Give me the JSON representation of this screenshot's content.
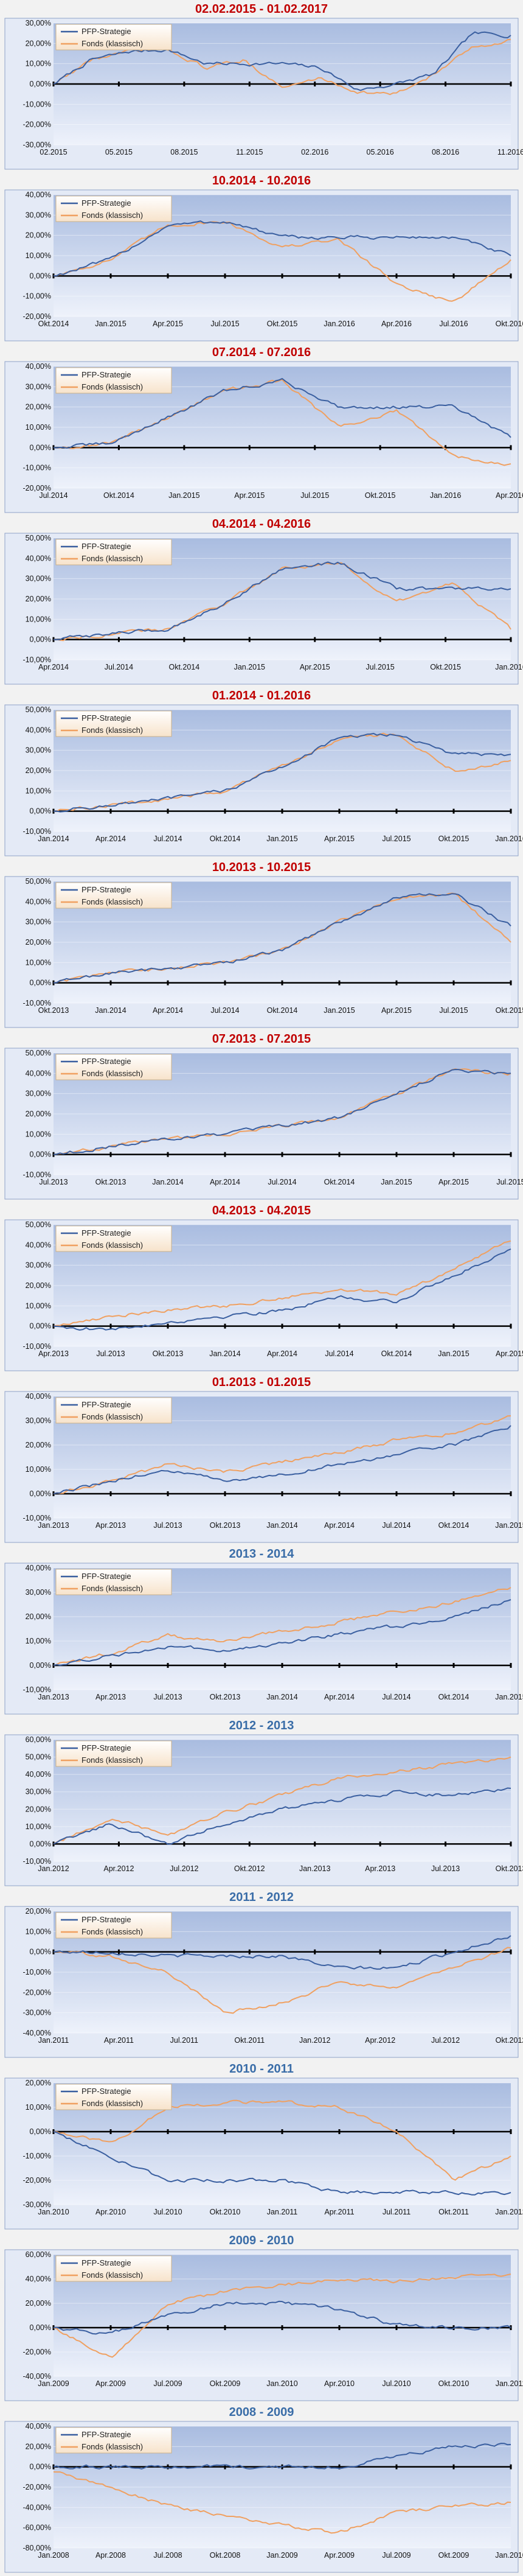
{
  "legend": {
    "strategy": "PFP-Strategie",
    "fund": "Fonds (klassisch)"
  },
  "colors": {
    "strategy": "#3a5fa0",
    "fund": "#f0a060",
    "title_red": "#c00000",
    "title_blue": "#3a6da8",
    "plot_top": "#a9bce0",
    "plot_bottom": "#eef2fb",
    "frame_border": "#8fa2c8",
    "baseline": "#000000"
  },
  "chart_data": [
    {
      "type": "line",
      "title": "02.02.2015 - 01.02.2017",
      "title_color": "red",
      "yticks": [
        "30,00%",
        "20,00%",
        "10,00%",
        "0,00%",
        "-10,00%",
        "-20,00%",
        "-30,00%"
      ],
      "ylim": [
        -30,
        30
      ],
      "xticks": [
        "02.2015",
        "05.2015",
        "08.2015",
        "11.2015",
        "02.2016",
        "05.2016",
        "08.2016",
        "11.2016"
      ],
      "x": [
        "02.2015",
        "04.2015",
        "06.2015",
        "08.2015",
        "10.2015",
        "12.2015",
        "02.2016",
        "04.2016",
        "06.2016",
        "08.2016",
        "10.2016",
        "12.2016",
        "02.2017"
      ],
      "series": [
        {
          "name": "PFP-Strategie",
          "values": [
            0,
            12,
            16,
            17,
            10,
            10,
            10,
            8,
            -3,
            0,
            5,
            25,
            24
          ]
        },
        {
          "name": "Fonds (klassisch)",
          "values": [
            0,
            12,
            16,
            17,
            8,
            12,
            -2,
            3,
            -4,
            -5,
            5,
            18,
            22
          ]
        }
      ]
    },
    {
      "type": "line",
      "title": "10.2014 - 10.2016",
      "title_color": "red",
      "yticks": [
        "40,00%",
        "30,00%",
        "20,00%",
        "10,00%",
        "0,00%",
        "-10,00%",
        "-20,00%"
      ],
      "ylim": [
        -20,
        40
      ],
      "xticks": [
        "Okt.2014",
        "Jan.2015",
        "Apr.2015",
        "Jul.2015",
        "Okt.2015",
        "Jan.2016",
        "Apr.2016",
        "Jul.2016",
        "Okt.2016"
      ],
      "x": [
        "Okt.2014",
        "Jan.2015",
        "Apr.2015",
        "Jul.2015",
        "Okt.2015",
        "Jan.2016",
        "Apr.2016",
        "Jul.2016",
        "Okt.2016"
      ],
      "series": [
        {
          "name": "PFP-Strategie",
          "values": [
            0,
            8,
            25,
            27,
            19,
            19,
            19,
            19,
            10
          ]
        },
        {
          "name": "Fonds (klassisch)",
          "values": [
            0,
            8,
            25,
            27,
            14,
            18,
            -4,
            -13,
            8
          ]
        }
      ]
    },
    {
      "type": "line",
      "title": "07.2014 - 07.2016",
      "title_color": "red",
      "yticks": [
        "40,00%",
        "30,00%",
        "20,00%",
        "10,00%",
        "0,00%",
        "-10,00%",
        "-20,00%"
      ],
      "ylim": [
        -20,
        40
      ],
      "xticks": [
        "Jul.2014",
        "Okt.2014",
        "Jan.2015",
        "Apr.2015",
        "Jul.2015",
        "Okt.2015",
        "Jan.2016",
        "Apr.2016"
      ],
      "x": [
        "Jul.2014",
        "Okt.2014",
        "Jan.2015",
        "Apr.2015",
        "Jul.2015",
        "Okt.2015",
        "Jan.2016",
        "Apr.2016",
        "Jul.2016"
      ],
      "series": [
        {
          "name": "PFP-Strategie",
          "values": [
            0,
            2,
            15,
            28,
            33,
            20,
            20,
            20,
            5
          ]
        },
        {
          "name": "Fonds (klassisch)",
          "values": [
            0,
            2,
            15,
            28,
            33,
            10,
            18,
            -4,
            -8
          ]
        }
      ]
    },
    {
      "type": "line",
      "title": "04.2014 - 04.2016",
      "title_color": "red",
      "yticks": [
        "50,00%",
        "40,00%",
        "30,00%",
        "20,00%",
        "10,00%",
        "0,00%",
        "-10,00%"
      ],
      "ylim": [
        -10,
        50
      ],
      "xticks": [
        "Apr.2014",
        "Jul.2014",
        "Okt.2014",
        "Jan.2015",
        "Apr.2015",
        "Jul.2015",
        "Okt.2015",
        "Jan.2016"
      ],
      "x": [
        "Apr.2014",
        "Jul.2014",
        "Okt.2014",
        "Jan.2015",
        "Apr.2015",
        "Jul.2015",
        "Okt.2015",
        "Jan.2016",
        "Apr.2016"
      ],
      "series": [
        {
          "name": "PFP-Strategie",
          "values": [
            0,
            3,
            5,
            18,
            35,
            38,
            25,
            25,
            25
          ]
        },
        {
          "name": "Fonds (klassisch)",
          "values": [
            0,
            3,
            5,
            18,
            35,
            38,
            18,
            28,
            5
          ]
        }
      ]
    },
    {
      "type": "line",
      "title": "01.2014 - 01.2016",
      "title_color": "red",
      "yticks": [
        "50,00%",
        "40,00%",
        "30,00%",
        "20,00%",
        "10,00%",
        "0,00%",
        "-10,00%"
      ],
      "ylim": [
        -10,
        50
      ],
      "xticks": [
        "Jan.2014",
        "Apr.2014",
        "Jul.2014",
        "Okt.2014",
        "Jan.2015",
        "Apr.2015",
        "Jul.2015",
        "Okt.2015",
        "Jan.2016"
      ],
      "x": [
        "Jan.2014",
        "Apr.2014",
        "Jul.2014",
        "Okt.2014",
        "Jan.2015",
        "Apr.2015",
        "Jul.2015",
        "Okt.2015",
        "Jan.2016"
      ],
      "series": [
        {
          "name": "PFP-Strategie",
          "values": [
            0,
            3,
            6,
            10,
            22,
            36,
            38,
            28,
            28
          ]
        },
        {
          "name": "Fonds (klassisch)",
          "values": [
            0,
            3,
            6,
            10,
            22,
            36,
            38,
            20,
            25
          ]
        }
      ]
    },
    {
      "type": "line",
      "title": "10.2013 - 10.2015",
      "title_color": "red",
      "yticks": [
        "50,00%",
        "40,00%",
        "30,00%",
        "20,00%",
        "10,00%",
        "0,00%",
        "-10,00%"
      ],
      "ylim": [
        -10,
        50
      ],
      "xticks": [
        "Okt.2013",
        "Jan.2014",
        "Apr.2014",
        "Jul.2014",
        "Okt.2014",
        "Jan.2015",
        "Apr.2015",
        "Jul.2015",
        "Okt.2015"
      ],
      "x": [
        "Okt.2013",
        "Jan.2014",
        "Apr.2014",
        "Jul.2014",
        "Okt.2014",
        "Jan.2015",
        "Apr.2015",
        "Jul.2015",
        "Okt.2015"
      ],
      "series": [
        {
          "name": "PFP-Strategie",
          "values": [
            0,
            5,
            7,
            10,
            16,
            30,
            42,
            44,
            28
          ]
        },
        {
          "name": "Fonds (klassisch)",
          "values": [
            0,
            5,
            7,
            10,
            16,
            30,
            42,
            44,
            20
          ]
        }
      ]
    },
    {
      "type": "line",
      "title": "07.2013 - 07.2015",
      "title_color": "red",
      "yticks": [
        "50,00%",
        "40,00%",
        "30,00%",
        "20,00%",
        "10,00%",
        "0,00%",
        "-10,00%"
      ],
      "ylim": [
        -10,
        50
      ],
      "xticks": [
        "Jul.2013",
        "Okt.2013",
        "Jan.2014",
        "Apr.2014",
        "Jul.2014",
        "Okt.2014",
        "Jan.2015",
        "Apr.2015",
        "Jul.2015"
      ],
      "x": [
        "Jul.2013",
        "Okt.2013",
        "Jan.2014",
        "Apr.2014",
        "Jul.2014",
        "Okt.2014",
        "Jan.2015",
        "Apr.2015",
        "Jul.2015"
      ],
      "series": [
        {
          "name": "PFP-Strategie",
          "values": [
            0,
            4,
            8,
            10,
            14,
            18,
            30,
            42,
            40
          ]
        },
        {
          "name": "Fonds (klassisch)",
          "values": [
            0,
            4,
            8,
            10,
            14,
            18,
            30,
            42,
            40
          ]
        }
      ]
    },
    {
      "type": "line",
      "title": "04.2013 - 04.2015",
      "title_color": "red",
      "yticks": [
        "50,00%",
        "40,00%",
        "30,00%",
        "20,00%",
        "10,00%",
        "0,00%",
        "-10,00%"
      ],
      "ylim": [
        -10,
        50
      ],
      "xticks": [
        "Apr.2013",
        "Jul.2013",
        "Okt.2013",
        "Jan.2014",
        "Apr.2014",
        "Jul.2014",
        "Okt.2014",
        "Jan.2015",
        "Apr.2015"
      ],
      "x": [
        "Apr.2013",
        "Jul.2013",
        "Okt.2013",
        "Jan.2014",
        "Apr.2014",
        "Jul.2014",
        "Okt.2014",
        "Jan.2015",
        "Apr.2015"
      ],
      "series": [
        {
          "name": "PFP-Strategie",
          "values": [
            0,
            -2,
            2,
            5,
            8,
            14,
            12,
            25,
            38
          ]
        },
        {
          "name": "Fonds (klassisch)",
          "values": [
            0,
            5,
            8,
            10,
            14,
            18,
            16,
            28,
            42
          ]
        }
      ]
    },
    {
      "type": "line",
      "title": "01.2013 - 01.2015",
      "title_color": "red",
      "yticks": [
        "40,00%",
        "30,00%",
        "20,00%",
        "10,00%",
        "0,00%",
        "-10,00%"
      ],
      "ylim": [
        -10,
        40
      ],
      "xticks": [
        "Jan.2013",
        "Apr.2013",
        "Jul.2013",
        "Okt.2013",
        "Jan.2014",
        "Apr.2014",
        "Jul.2014",
        "Okt.2014",
        "Jan.2015"
      ],
      "x": [
        "Jan.2013",
        "Apr.2013",
        "Jul.2013",
        "Okt.2013",
        "Jan.2014",
        "Apr.2014",
        "Jul.2014",
        "Okt.2014",
        "Jan.2015"
      ],
      "series": [
        {
          "name": "PFP-Strategie",
          "values": [
            0,
            5,
            10,
            5,
            8,
            12,
            16,
            20,
            28
          ]
        },
        {
          "name": "Fonds (klassisch)",
          "values": [
            0,
            5,
            12,
            9,
            13,
            17,
            22,
            25,
            32
          ]
        }
      ]
    },
    {
      "type": "line",
      "title": "2013 - 2014",
      "title_color": "blue",
      "yticks": [
        "40,00%",
        "30,00%",
        "20,00%",
        "10,00%",
        "0,00%",
        "-10,00%"
      ],
      "ylim": [
        -10,
        40
      ],
      "xticks": [
        "Jan.2013",
        "Apr.2013",
        "Jul.2013",
        "Okt.2013",
        "Jan.2014",
        "Apr.2014",
        "Jul.2014",
        "Okt.2014",
        "Jan.2015"
      ],
      "x": [
        "Jan.2013",
        "Apr.2013",
        "Jul.2013",
        "Okt.2013",
        "Jan.2014",
        "Apr.2014",
        "Jul.2014",
        "Okt.2014",
        "Jan.2015"
      ],
      "series": [
        {
          "name": "PFP-Strategie",
          "values": [
            0,
            4,
            8,
            6,
            9,
            13,
            16,
            20,
            27
          ]
        },
        {
          "name": "Fonds (klassisch)",
          "values": [
            0,
            5,
            12,
            10,
            14,
            18,
            22,
            26,
            32
          ]
        }
      ]
    },
    {
      "type": "line",
      "title": "2012 - 2013",
      "title_color": "blue",
      "yticks": [
        "60,00%",
        "50,00%",
        "40,00%",
        "30,00%",
        "20,00%",
        "10,00%",
        "0,00%",
        "-10,00%"
      ],
      "ylim": [
        -10,
        60
      ],
      "xticks": [
        "Jan.2012",
        "Apr.2012",
        "Jul.2012",
        "Okt.2012",
        "Jan.2013",
        "Apr.2013",
        "Jul.2013",
        "Okt.2013"
      ],
      "x": [
        "Jan.2012",
        "Apr.2012",
        "Jul.2012",
        "Okt.2012",
        "Jan.2013",
        "Apr.2013",
        "Jul.2013",
        "Okt.2013",
        "Jan.2014"
      ],
      "series": [
        {
          "name": "PFP-Strategie",
          "values": [
            0,
            12,
            0,
            12,
            20,
            25,
            30,
            28,
            32
          ]
        },
        {
          "name": "Fonds (klassisch)",
          "values": [
            0,
            15,
            5,
            18,
            28,
            38,
            42,
            46,
            50
          ]
        }
      ]
    },
    {
      "type": "line",
      "title": "2011 - 2012",
      "title_color": "blue",
      "yticks": [
        "20,00%",
        "10,00%",
        "0,00%",
        "-10,00%",
        "-20,00%",
        "-30,00%",
        "-40,00%"
      ],
      "ylim": [
        -40,
        20
      ],
      "xticks": [
        "Jan.2011",
        "Apr.2011",
        "Jul.2011",
        "Okt.2011",
        "Jan.2012",
        "Apr.2012",
        "Jul.2012",
        "Okt.2012"
      ],
      "x": [
        "Jan.2011",
        "Apr.2011",
        "Jul.2011",
        "Okt.2011",
        "Jan.2012",
        "Apr.2012",
        "Jul.2012",
        "Okt.2012",
        "Jan.2013"
      ],
      "series": [
        {
          "name": "PFP-Strategie",
          "values": [
            0,
            0,
            -2,
            -2,
            -2,
            -8,
            -8,
            0,
            8
          ]
        },
        {
          "name": "Fonds (klassisch)",
          "values": [
            0,
            -2,
            -10,
            -30,
            -25,
            -15,
            -18,
            -8,
            2
          ]
        }
      ]
    },
    {
      "type": "line",
      "title": "2010 - 2011",
      "title_color": "blue",
      "yticks": [
        "20,00%",
        "10,00%",
        "0,00%",
        "-10,00%",
        "-20,00%",
        "-30,00%"
      ],
      "ylim": [
        -30,
        20
      ],
      "xticks": [
        "Jan.2010",
        "Apr.2010",
        "Jul.2010",
        "Okt.2010",
        "Jan.2011",
        "Apr.2011",
        "Jul.2011",
        "Okt.2011",
        "Jan.2012"
      ],
      "x": [
        "Jan.2010",
        "Apr.2010",
        "Jul.2010",
        "Okt.2010",
        "Jan.2011",
        "Apr.2011",
        "Jul.2011",
        "Okt.2011",
        "Jan.2012"
      ],
      "series": [
        {
          "name": "PFP-Strategie",
          "values": [
            0,
            -10,
            -20,
            -20,
            -20,
            -25,
            -25,
            -25,
            -25
          ]
        },
        {
          "name": "Fonds (klassisch)",
          "values": [
            0,
            -5,
            10,
            12,
            12,
            10,
            0,
            -20,
            -10
          ]
        }
      ]
    },
    {
      "type": "line",
      "title": "2009 - 2010",
      "title_color": "blue",
      "yticks": [
        "60,00%",
        "40,00%",
        "20,00%",
        "0,00%",
        "-20,00%",
        "-40,00%"
      ],
      "ylim": [
        -40,
        60
      ],
      "xticks": [
        "Jan.2009",
        "Apr.2009",
        "Jul.2009",
        "Okt.2009",
        "Jan.2010",
        "Apr.2010",
        "Jul.2010",
        "Okt.2010",
        "Jan.2011"
      ],
      "x": [
        "Jan.2009",
        "Apr.2009",
        "Jul.2009",
        "Okt.2009",
        "Jan.2010",
        "Apr.2010",
        "Jul.2010",
        "Okt.2010",
        "Jan.2011"
      ],
      "series": [
        {
          "name": "PFP-Strategie",
          "values": [
            0,
            -5,
            10,
            20,
            20,
            15,
            2,
            0,
            0
          ]
        },
        {
          "name": "Fonds (klassisch)",
          "values": [
            0,
            -25,
            20,
            30,
            35,
            40,
            38,
            42,
            44
          ]
        }
      ]
    },
    {
      "type": "line",
      "title": "2008 - 2009",
      "title_color": "blue",
      "yticks": [
        "40,00%",
        "20,00%",
        "0,00%",
        "-20,00%",
        "-40,00%",
        "-60,00%",
        "-80,00%"
      ],
      "ylim": [
        -80,
        40
      ],
      "xticks": [
        "Jan.2008",
        "Apr.2008",
        "Jul.2008",
        "Okt.2008",
        "Jan.2009",
        "Apr.2009",
        "Jul.2009",
        "Okt.2009",
        "Jan.2010"
      ],
      "x": [
        "Jan.2008",
        "Apr.2008",
        "Jul.2008",
        "Okt.2008",
        "Jan.2009",
        "Apr.2009",
        "Jul.2009",
        "Okt.2009",
        "Jan.2010"
      ],
      "series": [
        {
          "name": "PFP-Strategie",
          "values": [
            0,
            0,
            0,
            0,
            0,
            0,
            10,
            20,
            22
          ]
        },
        {
          "name": "Fonds (klassisch)",
          "values": [
            -5,
            -20,
            -38,
            -48,
            -58,
            -65,
            -45,
            -38,
            -35
          ]
        }
      ]
    }
  ]
}
